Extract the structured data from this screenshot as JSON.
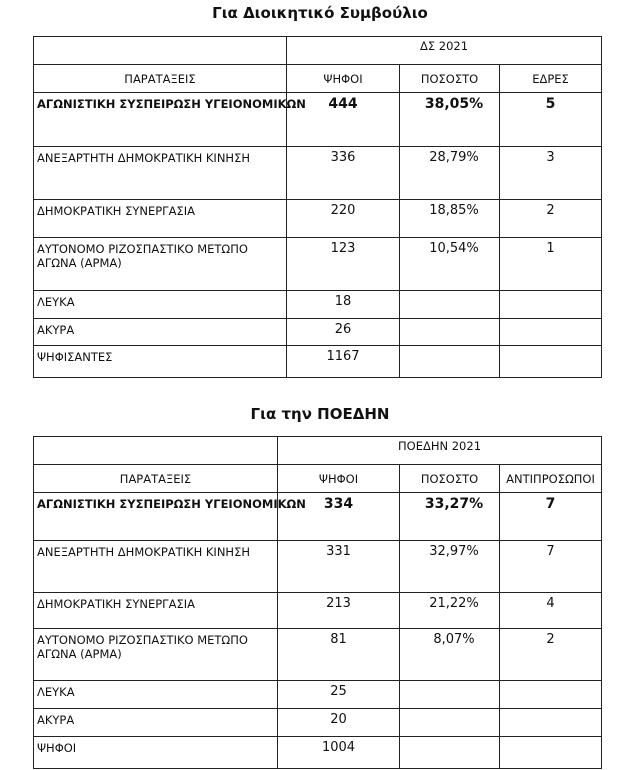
{
  "board": {
    "title": "Για Διοικητικό Συμβούλιο",
    "group_header": "ΔΣ 2021",
    "columns": [
      "ΠΑΡΑΤΑΞΕΙΣ",
      "ΨΗΦΟΙ",
      "ΠΟΣΟΣΤΟ",
      "ΕΔΡΕΣ"
    ],
    "rows": [
      {
        "name": "ΑΓΩΝΙΣΤΙΚΗ ΣΥΣΠΕΙΡΩΣΗ ΥΓΕΙΟΝΟΜΙΚΩΝ",
        "votes": "444",
        "percent": "38,05%",
        "seats": "5"
      },
      {
        "name": "ΑΝΕΞΑΡΤΗΤΗ ΔΗΜΟΚΡΑΤΙΚΗ ΚΙΝΗΣΗ",
        "votes": "336",
        "percent": "28,79%",
        "seats": "3"
      },
      {
        "name": "ΔΗΜΟΚΡΑΤΙΚΗ ΣΥΝΕΡΓΑΣΙΑ",
        "votes": "220",
        "percent": "18,85%",
        "seats": "2"
      },
      {
        "name": "ΑΥΤΟΝΟΜΟ ΡΙΖΟΣΠΑΣΤΙΚΟ ΜΕΤΩΠΟ ΑΓΩΝΑ (ΑΡΜΑ)",
        "votes": "123",
        "percent": "10,54%",
        "seats": "1"
      }
    ],
    "blank": {
      "label": "ΛΕΥΚΑ",
      "value": "18"
    },
    "invalid": {
      "label": "ΑΚΥΡΑ",
      "value": "26"
    },
    "total": {
      "label": "ΨΗΦΙΣΑΝΤΕΣ",
      "value": "1167"
    }
  },
  "poedin": {
    "title": "Για την ΠΟΕΔΗΝ",
    "group_header": "ΠΟΕΔΗΝ 2021",
    "columns": [
      "ΠΑΡΑΤΑΞΕΙΣ",
      "ΨΗΦΟΙ",
      "ΠΟΣΟΣΤΟ",
      "ΑΝΤΙΠΡΟΣΩΠΟΙ"
    ],
    "rows": [
      {
        "name": "ΑΓΩΝΙΣΤΙΚΗ ΣΥΣΠΕΙΡΩΣΗ ΥΓΕΙΟΝΟΜΙΚΩΝ",
        "votes": "334",
        "percent": "33,27%",
        "seats": "7"
      },
      {
        "name": "ΑΝΕΞΑΡΤΗΤΗ ΔΗΜΟΚΡΑΤΙΚΗ ΚΙΝΗΣΗ",
        "votes": "331",
        "percent": "32,97%",
        "seats": "7"
      },
      {
        "name": "ΔΗΜΟΚΡΑΤΙΚΗ ΣΥΝΕΡΓΑΣΙΑ",
        "votes": "213",
        "percent": "21,22%",
        "seats": "4"
      },
      {
        "name": "ΑΥΤΟΝΟΜΟ ΡΙΖΟΣΠΑΣΤΙΚΟ ΜΕΤΩΠΟ ΑΓΩΝΑ (ΑΡΜΑ)",
        "votes": "81",
        "percent": "8,07%",
        "seats": "2"
      }
    ],
    "blank": {
      "label": "ΛΕΥΚΑ",
      "value": "25"
    },
    "invalid": {
      "label": "ΑΚΥΡΑ",
      "value": "20"
    },
    "total": {
      "label": "ΨΗΦΟΙ",
      "value": "1004"
    }
  }
}
